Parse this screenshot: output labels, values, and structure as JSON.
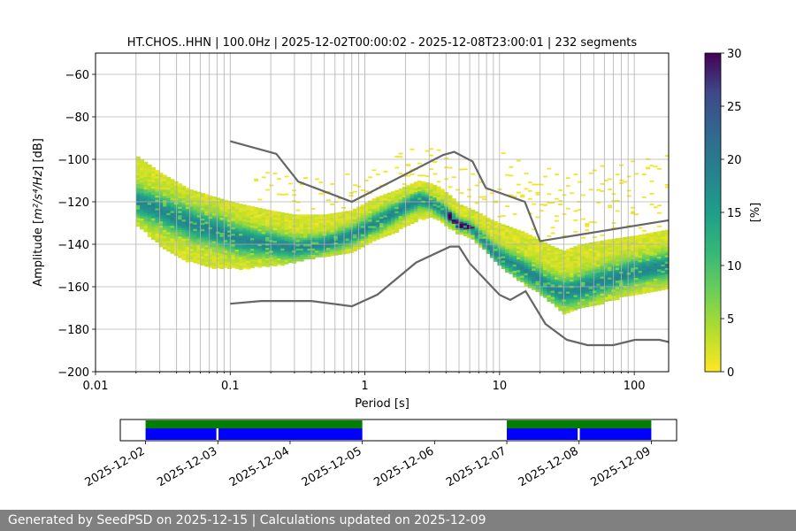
{
  "chart_data": [
    {
      "type": "heatmap",
      "title": "HT.CHOS..HHN | 100.0Hz | 2025-12-02T00:00:02 - 2025-12-08T23:00:01 | 232 segments",
      "xlabel": "Period [s]",
      "ylabel_prefix": "Amplitude [",
      "ylabel_math": "m²/s⁴/Hz",
      "ylabel_suffix": "] [dB]",
      "x_scale": "log",
      "xlim": [
        0.01,
        180
      ],
      "ylim": [
        -200,
        -50
      ],
      "x_ticks": [
        {
          "value": 0.01,
          "label": "0.01"
        },
        {
          "value": 0.1,
          "label": "0.1"
        },
        {
          "value": 1,
          "label": "1"
        },
        {
          "value": 10,
          "label": "10"
        },
        {
          "value": 100,
          "label": "100"
        }
      ],
      "y_ticks": [
        {
          "value": -60,
          "label": "−60"
        },
        {
          "value": -80,
          "label": "−80"
        },
        {
          "value": -100,
          "label": "−100"
        },
        {
          "value": -120,
          "label": "−120"
        },
        {
          "value": -140,
          "label": "−140"
        },
        {
          "value": -160,
          "label": "−160"
        },
        {
          "value": -180,
          "label": "−180"
        },
        {
          "value": -200,
          "label": "−200"
        }
      ],
      "grid": true,
      "colormap": "viridis_r",
      "colorbar": {
        "label": "[%]",
        "range": [
          0,
          30
        ],
        "ticks": [
          {
            "value": 0,
            "label": "0"
          },
          {
            "value": 5,
            "label": "5"
          },
          {
            "value": 10,
            "label": "10"
          },
          {
            "value": 15,
            "label": "15"
          },
          {
            "value": 20,
            "label": "20"
          },
          {
            "value": 25,
            "label": "25"
          },
          {
            "value": 30,
            "label": "30"
          }
        ]
      },
      "heatmap_period_range": [
        0.02,
        180
      ],
      "median_curve": [
        [
          0.02,
          -120
        ],
        [
          0.03,
          -124
        ],
        [
          0.05,
          -130
        ],
        [
          0.08,
          -134
        ],
        [
          0.12,
          -138
        ],
        [
          0.2,
          -140
        ],
        [
          0.3,
          -142
        ],
        [
          0.5,
          -140
        ],
        [
          0.8,
          -136
        ],
        [
          1.2,
          -130
        ],
        [
          1.8,
          -124
        ],
        [
          2.5,
          -119
        ],
        [
          3.0,
          -120
        ],
        [
          3.6,
          -123
        ],
        [
          4.5,
          -128
        ],
        [
          5.0,
          -131
        ],
        [
          6.0,
          -132
        ],
        [
          7.0,
          -136
        ],
        [
          8.5,
          -142
        ],
        [
          10,
          -146
        ],
        [
          15,
          -152
        ],
        [
          20,
          -157
        ],
        [
          25,
          -161
        ],
        [
          30,
          -163
        ],
        [
          40,
          -161
        ],
        [
          60,
          -157
        ],
        [
          100,
          -153
        ],
        [
          180,
          -150
        ]
      ],
      "band_lower": [
        [
          0.02,
          -130
        ],
        [
          0.03,
          -140
        ],
        [
          0.05,
          -148
        ],
        [
          0.08,
          -151
        ],
        [
          0.12,
          -151
        ],
        [
          0.2,
          -150
        ],
        [
          0.3,
          -148
        ],
        [
          0.5,
          -145
        ],
        [
          0.8,
          -143
        ],
        [
          1.2,
          -138
        ],
        [
          1.8,
          -133
        ],
        [
          2.5,
          -128
        ],
        [
          3.0,
          -127
        ],
        [
          3.6,
          -129
        ],
        [
          4.5,
          -133
        ],
        [
          5.0,
          -135
        ],
        [
          6.0,
          -136
        ],
        [
          7.0,
          -140
        ],
        [
          8.5,
          -145
        ],
        [
          10,
          -150
        ],
        [
          15,
          -158
        ],
        [
          20,
          -163
        ],
        [
          25,
          -168
        ],
        [
          30,
          -172
        ],
        [
          40,
          -170
        ],
        [
          60,
          -167
        ],
        [
          100,
          -163
        ],
        [
          180,
          -160
        ]
      ],
      "band_upper": [
        [
          0.02,
          -98
        ],
        [
          0.03,
          -106
        ],
        [
          0.05,
          -114
        ],
        [
          0.08,
          -118
        ],
        [
          0.12,
          -121
        ],
        [
          0.2,
          -124
        ],
        [
          0.3,
          -126
        ],
        [
          0.5,
          -126
        ],
        [
          0.8,
          -124
        ],
        [
          1.2,
          -118
        ],
        [
          1.8,
          -114
        ],
        [
          2.5,
          -110
        ],
        [
          3.0,
          -111
        ],
        [
          3.6,
          -113
        ],
        [
          4.5,
          -118
        ],
        [
          5.0,
          -121
        ],
        [
          6.0,
          -123
        ],
        [
          7.0,
          -125
        ],
        [
          8.5,
          -128
        ],
        [
          10,
          -130
        ],
        [
          15,
          -134
        ],
        [
          20,
          -138
        ],
        [
          25,
          -141
        ],
        [
          30,
          -143
        ],
        [
          40,
          -140
        ],
        [
          60,
          -138
        ],
        [
          100,
          -136
        ],
        [
          180,
          -133
        ]
      ],
      "series": [
        {
          "kind": "noise-model-high",
          "color": "#666666",
          "points": [
            [
              0.1,
              -91.5
            ],
            [
              0.22,
              -97.4
            ],
            [
              0.32,
              -110.5
            ],
            [
              0.8,
              -120
            ],
            [
              3.8,
              -98
            ],
            [
              4.6,
              -96.5
            ],
            [
              6.3,
              -101
            ],
            [
              7.9,
              -113.5
            ],
            [
              15.4,
              -120
            ],
            [
              20,
              -138.5
            ],
            [
              180,
              -128.7
            ]
          ]
        },
        {
          "kind": "noise-model-low",
          "color": "#666666",
          "points": [
            [
              0.1,
              -168
            ],
            [
              0.17,
              -166.7
            ],
            [
              0.4,
              -166.7
            ],
            [
              0.8,
              -169.2
            ],
            [
              1.24,
              -163.7
            ],
            [
              2.4,
              -148.6
            ],
            [
              4.3,
              -141.1
            ],
            [
              5.0,
              -141.1
            ],
            [
              6.0,
              -149
            ],
            [
              10,
              -163.8
            ],
            [
              12,
              -166.2
            ],
            [
              15.6,
              -162.1
            ],
            [
              21.9,
              -177.5
            ],
            [
              31.6,
              -185
            ],
            [
              45,
              -187.5
            ],
            [
              70,
              -187.5
            ],
            [
              101,
              -185
            ],
            [
              154,
              -185
            ],
            [
              180,
              -186
            ]
          ]
        }
      ]
    },
    {
      "type": "timeline",
      "x_ticks": [
        "2025-12-02",
        "2025-12-03",
        "2025-12-04",
        "2025-12-05",
        "2025-12-06",
        "2025-12-07",
        "2025-12-08",
        "2025-12-09"
      ],
      "xlim_days": [
        -0.35,
        7.35
      ],
      "green_spans": [
        [
          0,
          3
        ],
        [
          5,
          7
        ]
      ],
      "blue_spans": [
        [
          0,
          0.98
        ],
        [
          1.01,
          3
        ],
        [
          5,
          5.98
        ],
        [
          6.01,
          7
        ]
      ],
      "green_color": "#007f00",
      "blue_color": "#0000ff"
    }
  ],
  "footer": {
    "text": "Generated by SeedPSD on 2025-12-15 | Calculations updated on 2025-12-09",
    "background": "#808080"
  }
}
